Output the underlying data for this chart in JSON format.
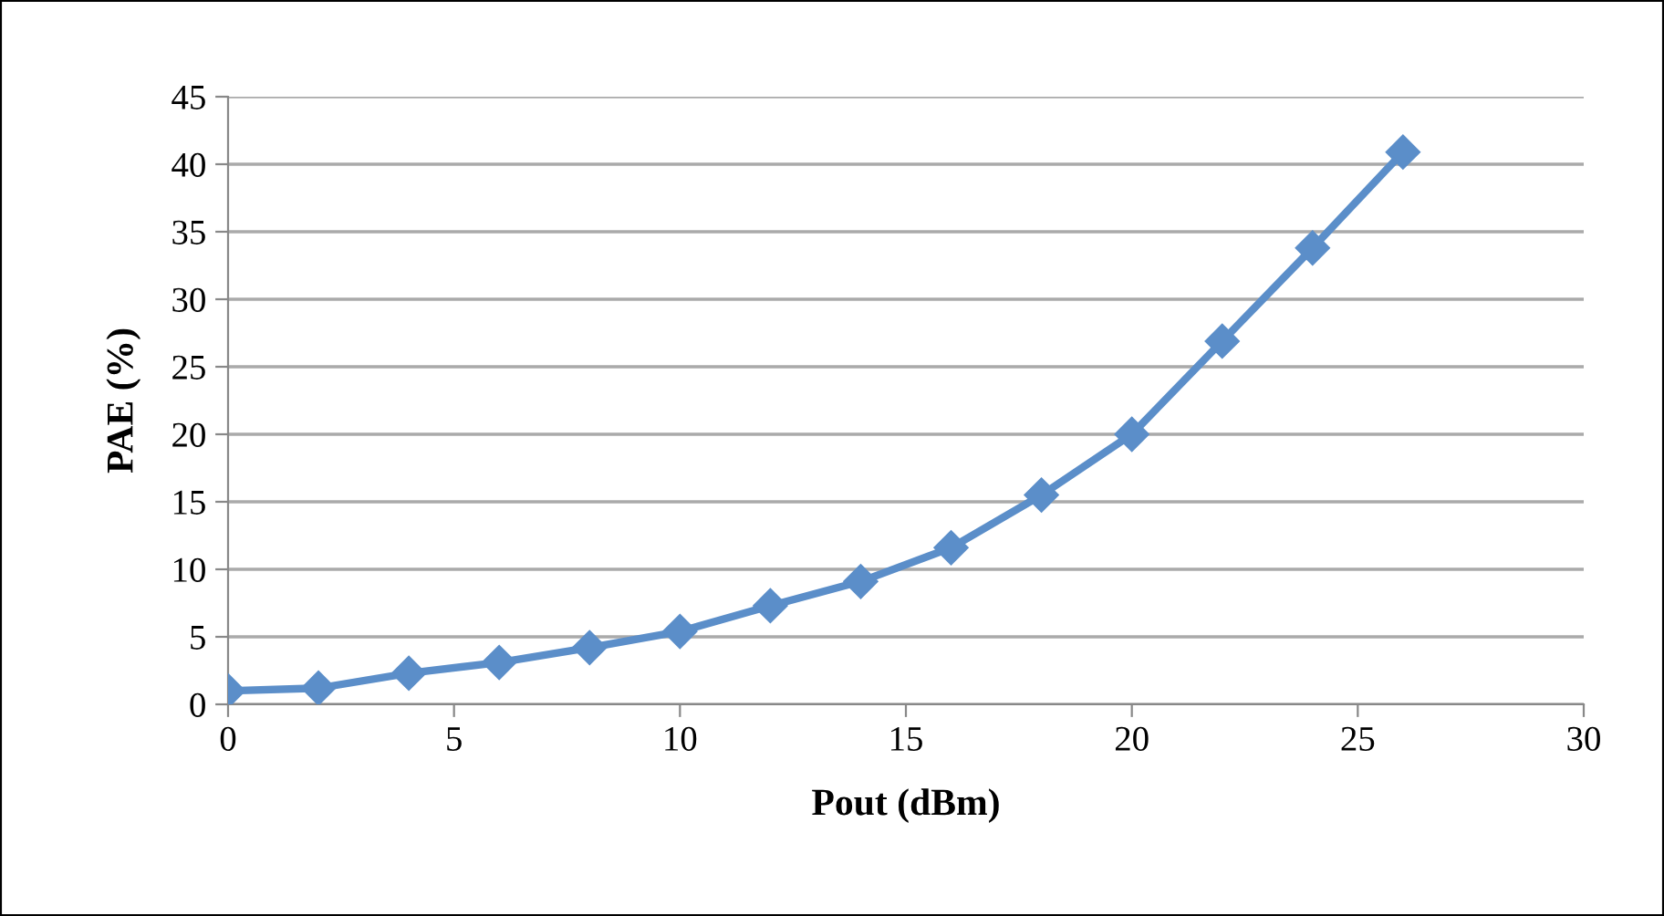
{
  "chart_data": {
    "type": "line",
    "xlabel": "Pout (dBm)",
    "ylabel": "PAE (%)",
    "x": [
      0,
      2,
      4,
      6,
      8,
      10,
      12,
      14,
      16,
      18,
      20,
      22,
      24,
      26
    ],
    "series": [
      {
        "color": "#5b8ec9",
        "values": [
          1.0,
          1.2,
          2.3,
          3.1,
          4.2,
          5.4,
          7.3,
          9.1,
          11.6,
          15.5,
          20.0,
          26.9,
          33.8,
          40.9
        ]
      }
    ],
    "xlim": [
      0,
      30
    ],
    "xticks": [
      0,
      5,
      10,
      15,
      20,
      25,
      30
    ],
    "ylim": [
      0,
      45
    ],
    "yticks": [
      0,
      5,
      10,
      15,
      20,
      25,
      30,
      35,
      40,
      45
    ],
    "grid": "y",
    "marker": "diamond",
    "line_style": "solid"
  }
}
